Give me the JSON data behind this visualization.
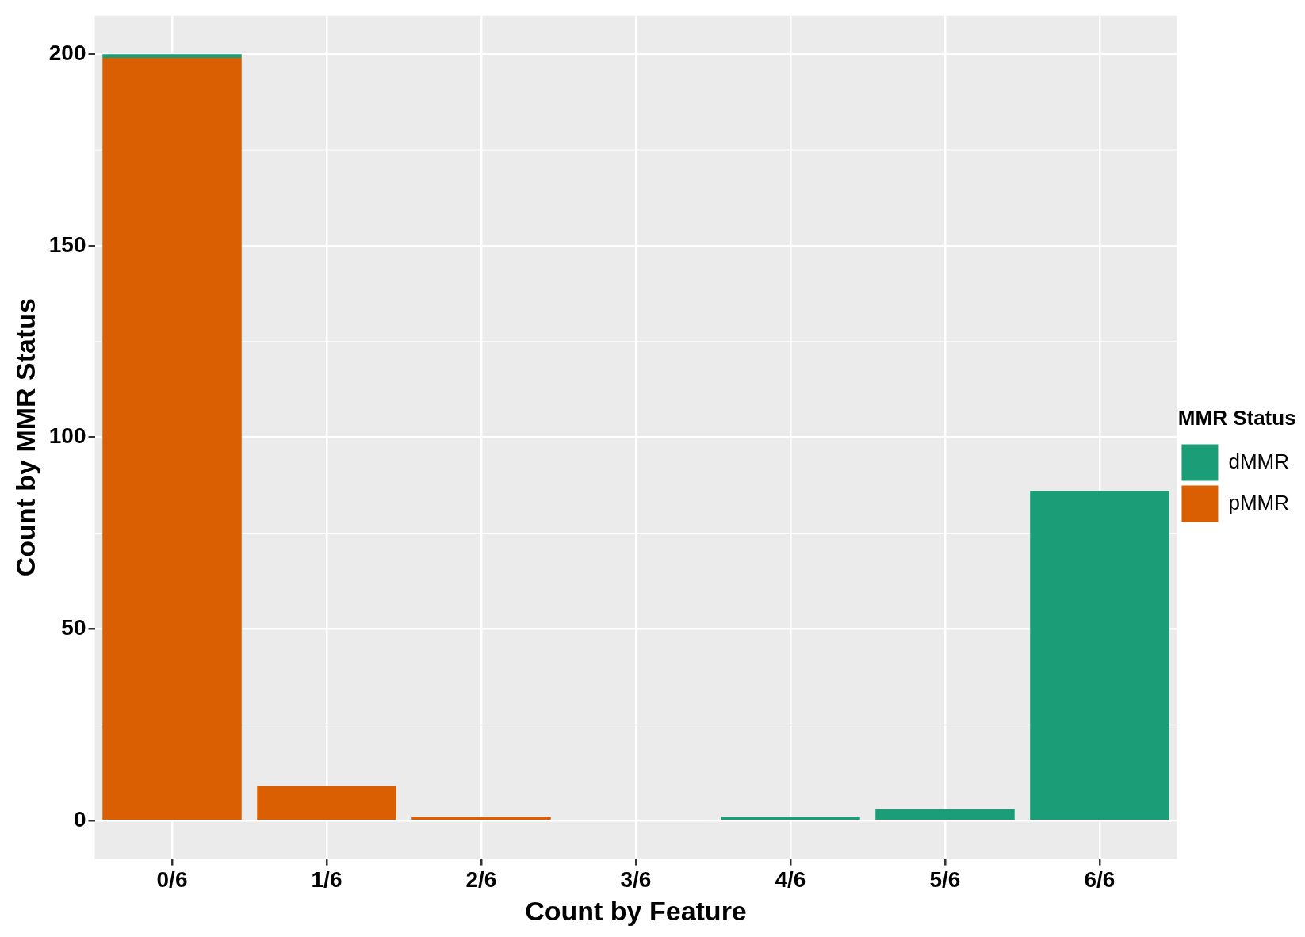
{
  "chart_data": {
    "type": "bar",
    "stacked": true,
    "xlabel": "Count by Feature",
    "ylabel": "Count by MMR Status",
    "legend_title": "MMR Status",
    "categories": [
      "0/6",
      "1/6",
      "2/6",
      "3/6",
      "4/6",
      "5/6",
      "6/6"
    ],
    "series": [
      {
        "name": "pMMR",
        "color": "#d95f02",
        "values": [
          199,
          9,
          1,
          0,
          0,
          0,
          0
        ]
      },
      {
        "name": "dMMR",
        "color": "#1b9e77",
        "values": [
          1,
          0,
          0,
          0,
          1,
          3,
          86
        ]
      }
    ],
    "ylim": [
      -10,
      210
    ],
    "yticks": [
      0,
      50,
      100,
      150,
      200
    ],
    "grid": true,
    "legend": "right"
  }
}
